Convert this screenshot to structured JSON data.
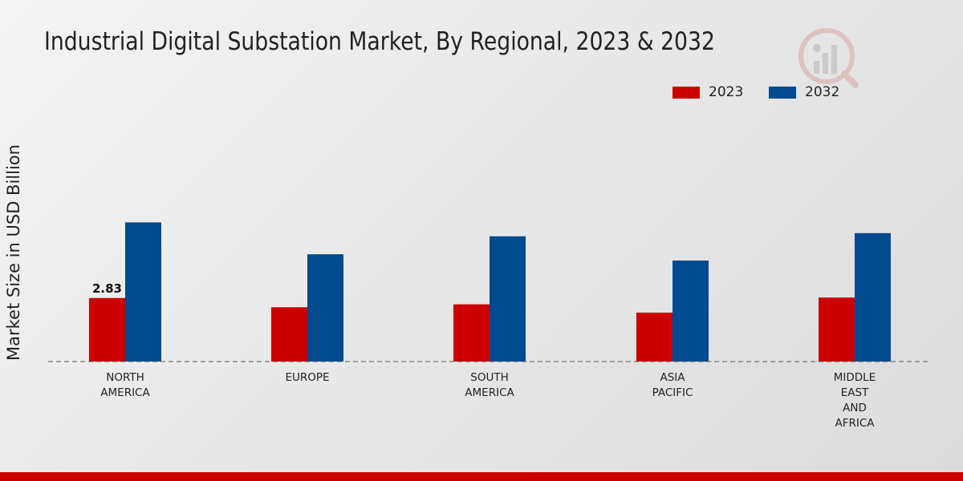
{
  "chart_data": {
    "type": "bar",
    "title": "Industrial Digital Substation Market, By Regional, 2023 & 2032",
    "xlabel": "",
    "ylabel": "Market Size in USD Billion",
    "categories": [
      [
        "NORTH",
        "AMERICA"
      ],
      [
        "EUROPE"
      ],
      [
        "SOUTH",
        "AMERICA"
      ],
      [
        "ASIA",
        "PACIFIC"
      ],
      [
        "MIDDLE",
        "EAST",
        "AND",
        "AFRICA"
      ]
    ],
    "series": [
      {
        "name": "2023",
        "color": "#cc0000",
        "values": [
          2.83,
          2.42,
          2.55,
          2.18,
          2.85
        ]
      },
      {
        "name": "2032",
        "color": "#004a8f",
        "values": [
          6.2,
          4.78,
          5.58,
          4.5,
          5.72
        ]
      }
    ],
    "data_labels": [
      {
        "series": 0,
        "index": 0,
        "text": "2.83"
      }
    ],
    "ylim": [
      0,
      12
    ],
    "legend_position": "top-right",
    "grid": false
  }
}
